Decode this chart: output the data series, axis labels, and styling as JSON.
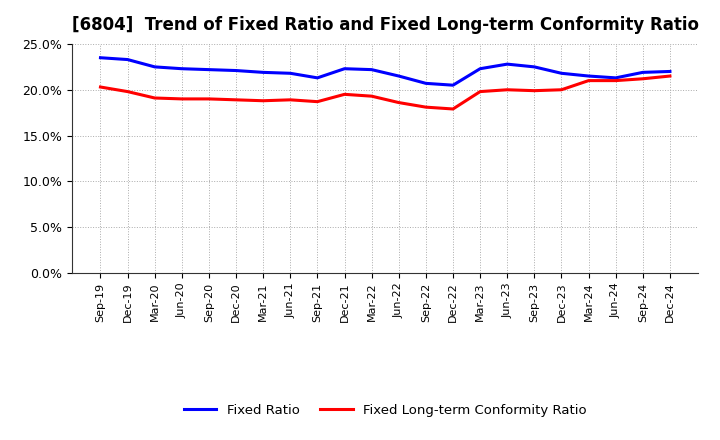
{
  "title": "[6804]  Trend of Fixed Ratio and Fixed Long-term Conformity Ratio",
  "x_labels": [
    "Sep-19",
    "Dec-19",
    "Mar-20",
    "Jun-20",
    "Sep-20",
    "Dec-20",
    "Mar-21",
    "Jun-21",
    "Sep-21",
    "Dec-21",
    "Mar-22",
    "Jun-22",
    "Sep-22",
    "Dec-22",
    "Mar-23",
    "Jun-23",
    "Sep-23",
    "Dec-23",
    "Mar-24",
    "Jun-24",
    "Sep-24",
    "Dec-24"
  ],
  "fixed_ratio": [
    23.5,
    23.3,
    22.5,
    22.3,
    22.2,
    22.1,
    21.9,
    21.8,
    21.3,
    22.3,
    22.2,
    21.5,
    20.7,
    20.5,
    22.3,
    22.8,
    22.5,
    21.8,
    21.5,
    21.3,
    21.9,
    22.0
  ],
  "fixed_lt_ratio": [
    20.3,
    19.8,
    19.1,
    19.0,
    19.0,
    18.9,
    18.8,
    18.9,
    18.7,
    19.5,
    19.3,
    18.6,
    18.1,
    17.9,
    19.8,
    20.0,
    19.9,
    20.0,
    21.0,
    21.0,
    21.2,
    21.5
  ],
  "ylim": [
    0,
    25
  ],
  "yticks": [
    0.0,
    5.0,
    10.0,
    15.0,
    20.0,
    25.0
  ],
  "fixed_ratio_color": "#0000FF",
  "fixed_lt_ratio_color": "#FF0000",
  "line_width": 2.2,
  "background_color": "#FFFFFF",
  "grid_color": "#AAAAAA",
  "legend_fixed": "Fixed Ratio",
  "legend_fixed_lt": "Fixed Long-term Conformity Ratio"
}
